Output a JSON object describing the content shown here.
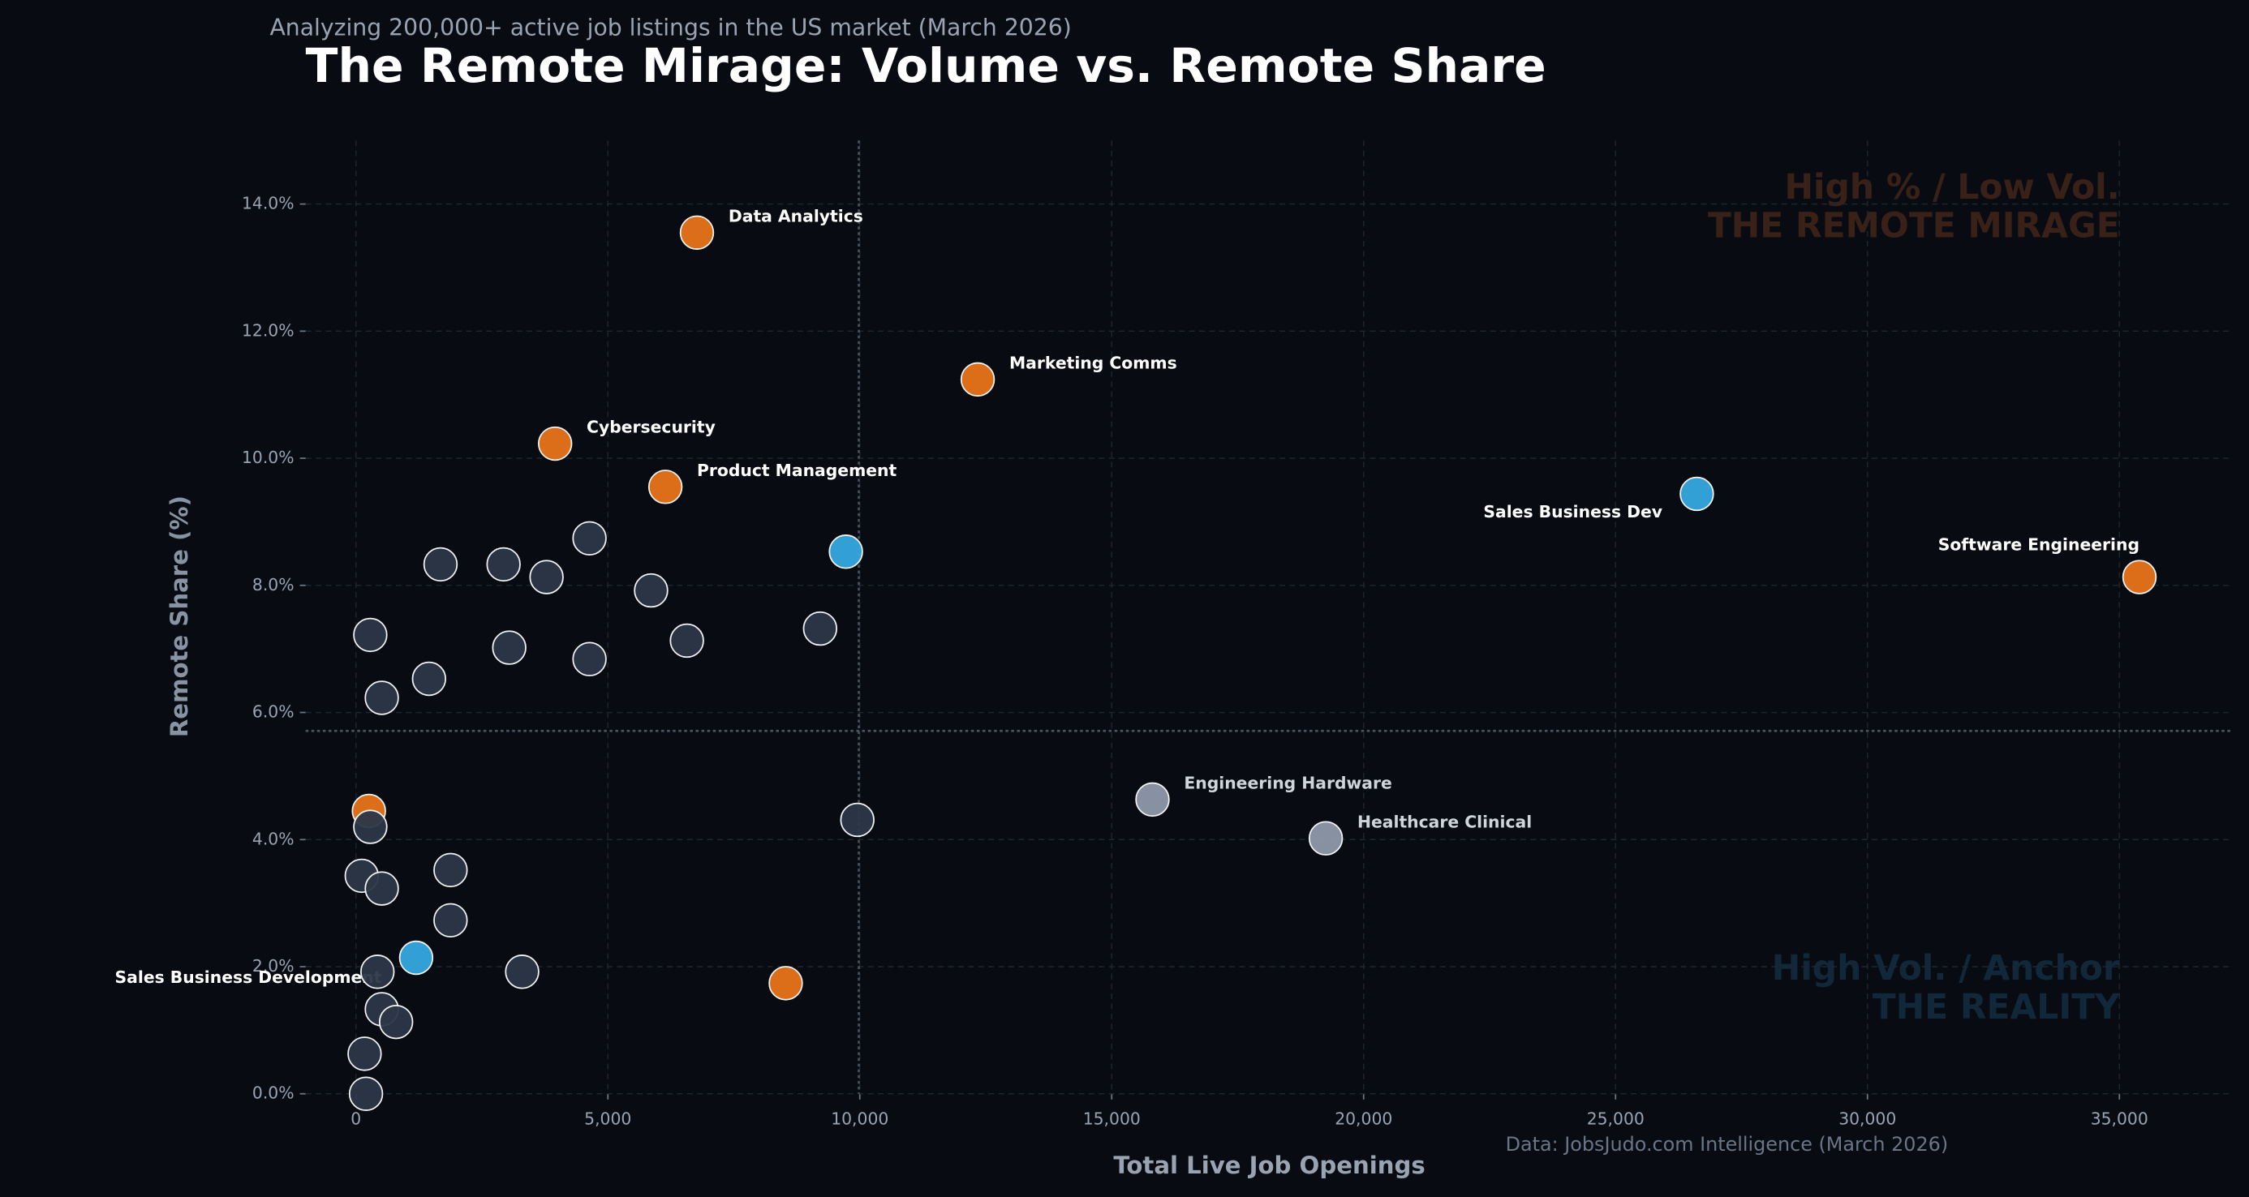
{
  "chart_data": {
    "type": "scatter",
    "subtitle": "Analyzing 200,000+ active job listings in the US market (March 2026)",
    "title": "The Remote Mirage: Volume vs. Remote Share",
    "x_label": "Total Live Job Openings",
    "y_label": "Remote Share (%)",
    "source": "Data: JobsJudo.com Intelligence (March 2026)",
    "annotations": [
      {
        "lines": [
          "High % / Low Vol.",
          "THE REMOTE MIRAGE"
        ],
        "color": "#3a2118"
      },
      {
        "lines": [
          "High Vol. / Anchor",
          "THE REALITY"
        ],
        "color": "#10283a"
      }
    ],
    "xlim": [
      -1000,
      37200
    ],
    "ylim": [
      0,
      15
    ],
    "xticks": [
      0,
      {
        "value": 5000,
        "label": "5,000"
      },
      {
        "value": 10000,
        "label": "10,000"
      },
      {
        "value": 15000,
        "label": "15,000"
      },
      {
        "value": 20000,
        "label": "20,000"
      },
      {
        "value": 25000,
        "label": "25,000"
      },
      {
        "value": 30000,
        "label": "30,000"
      },
      {
        "value": 35000,
        "label": "35,000"
      }
    ],
    "yticks": [
      {
        "value": 0,
        "label": "0.0%"
      },
      {
        "value": 2,
        "label": "2.0%"
      },
      {
        "value": 4,
        "label": "4.0%"
      },
      {
        "value": 6,
        "label": "6.0%"
      },
      {
        "value": 8,
        "label": "8.0%"
      },
      {
        "value": 10,
        "label": "10.0%"
      },
      {
        "value": 12,
        "label": "12.0%"
      },
      {
        "value": 14,
        "label": "14.0%"
      }
    ],
    "grid": true,
    "reference_lines": {
      "x": 9980,
      "y": 5.71
    },
    "points": [
      {
        "x": 6767,
        "y": 13.55,
        "color": "#e8731a",
        "label": "Data Analytics"
      },
      {
        "x": 12340,
        "y": 11.24,
        "color": "#e8731a",
        "label": "Marketing Comms"
      },
      {
        "x": 3952,
        "y": 10.23,
        "color": "#e8731a",
        "label": "Cybersecurity"
      },
      {
        "x": 6141,
        "y": 9.55,
        "color": "#e8731a",
        "label": "Product Management"
      },
      {
        "x": 35399,
        "y": 8.13,
        "color": "#e8731a",
        "label": "Software Engineering"
      },
      {
        "x": 26613,
        "y": 9.44,
        "color": "#35a8e0",
        "label": "Sales Business Dev"
      },
      {
        "x": 1194,
        "y": 2.14,
        "color": "#35a8e0",
        "label": "Sales Business Development"
      },
      {
        "x": 15809,
        "y": 4.63,
        "color": "#8e99aa",
        "label": "Engineering Hardware"
      },
      {
        "x": 19249,
        "y": 4.02,
        "color": "#8e99aa",
        "label": "Healthcare Clinical"
      },
      {
        "x": 256,
        "y": 4.45,
        "color": "#e8731a"
      },
      {
        "x": 8530,
        "y": 1.74,
        "color": "#e8731a"
      },
      {
        "x": 9724,
        "y": 8.53,
        "color": "#35a8e0"
      },
      {
        "x": 284,
        "y": 7.22,
        "color": "#2d3748"
      },
      {
        "x": 512,
        "y": 6.23,
        "color": "#2d3748"
      },
      {
        "x": 1450,
        "y": 6.53,
        "color": "#2d3748"
      },
      {
        "x": 1678,
        "y": 8.33,
        "color": "#2d3748"
      },
      {
        "x": 2929,
        "y": 8.33,
        "color": "#2d3748"
      },
      {
        "x": 3042,
        "y": 7.02,
        "color": "#2d3748"
      },
      {
        "x": 3782,
        "y": 8.13,
        "color": "#2d3748"
      },
      {
        "x": 4635,
        "y": 8.74,
        "color": "#2d3748"
      },
      {
        "x": 4635,
        "y": 6.84,
        "color": "#2d3748"
      },
      {
        "x": 5857,
        "y": 7.92,
        "color": "#2d3748"
      },
      {
        "x": 6568,
        "y": 7.13,
        "color": "#2d3748"
      },
      {
        "x": 9212,
        "y": 7.32,
        "color": "#2d3748"
      },
      {
        "x": 9951,
        "y": 4.31,
        "color": "#2d3748"
      },
      {
        "x": 284,
        "y": 4.2,
        "color": "#2d3748"
      },
      {
        "x": 114,
        "y": 3.43,
        "color": "#2d3748"
      },
      {
        "x": 512,
        "y": 3.23,
        "color": "#2d3748"
      },
      {
        "x": 1877,
        "y": 3.52,
        "color": "#2d3748"
      },
      {
        "x": 1877,
        "y": 2.73,
        "color": "#2d3748"
      },
      {
        "x": 426,
        "y": 1.92,
        "color": "#2d3748"
      },
      {
        "x": 3298,
        "y": 1.92,
        "color": "#2d3748"
      },
      {
        "x": 512,
        "y": 1.33,
        "color": "#2d3748"
      },
      {
        "x": 796,
        "y": 1.13,
        "color": "#2d3748"
      },
      {
        "x": 171,
        "y": 0.63,
        "color": "#2d3748"
      },
      {
        "x": 199,
        "y": 0.0,
        "color": "#2d3748"
      }
    ]
  }
}
